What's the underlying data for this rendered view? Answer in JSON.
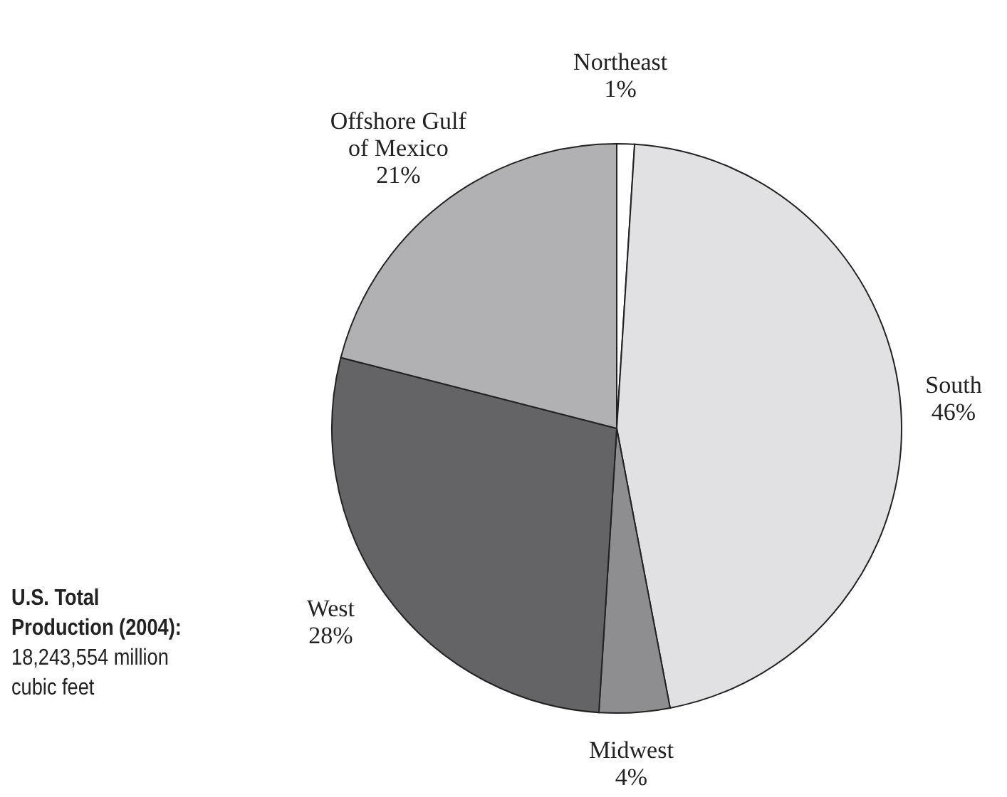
{
  "chart_data": {
    "type": "pie",
    "categories": [
      "Northeast",
      "South",
      "Midwest",
      "West",
      "Offshore Gulf of Mexico"
    ],
    "values": [
      1,
      46,
      4,
      28,
      21
    ],
    "value_labels": [
      "1%",
      "46%",
      "4%",
      "28%",
      "21%"
    ],
    "colors": [
      "#ffffff",
      "#e1e1e3",
      "#8e8e90",
      "#646466",
      "#b1b1b3"
    ],
    "annotations": [
      "U.S. Total Production (2004):",
      "18,243,554 million cubic feet"
    ]
  }
}
